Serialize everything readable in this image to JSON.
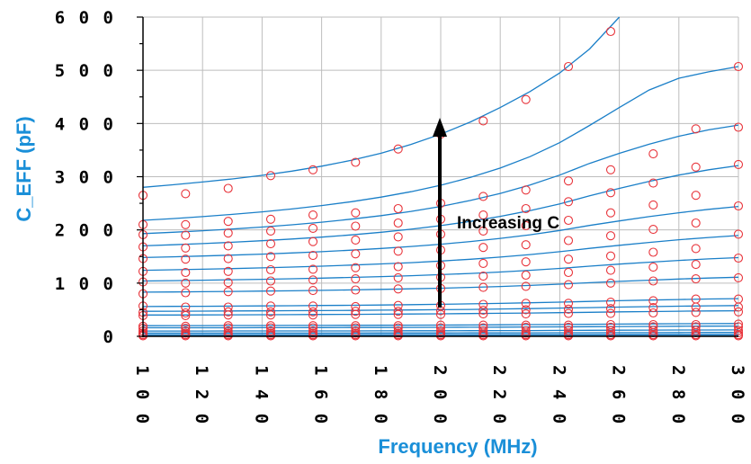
{
  "chart_data": {
    "type": "scatter",
    "xlabel": "Frequency (MHz)",
    "ylabel": "C_EFF (pF)",
    "xlim": [
      100,
      300
    ],
    "ylim": [
      0,
      600
    ],
    "x_ticks": [
      "1 0 0",
      "1 2 0",
      "1 4 0",
      "1 6 0",
      "1 8 0",
      "2 0 0",
      "2 2 0",
      "2 4 0",
      "2 6 0",
      "2 8 0",
      "3 0 0"
    ],
    "y_ticks": [
      "0",
      "1 0 0",
      "2 0 0",
      "3 0 0",
      "4 0 0",
      "5 0 0",
      "6 0 0"
    ],
    "grid": true,
    "annotation": "Increasing C",
    "line_color": "#1a7fc8",
    "marker_color": "#e8333a",
    "label_color": "#1a8fd8",
    "x_markers": [
      100,
      114.3,
      128.6,
      142.9,
      157.1,
      171.4,
      185.7,
      200,
      214.3,
      228.6,
      242.9,
      257.1,
      271.4,
      285.7,
      300
    ],
    "lines_x": [
      100,
      110,
      120,
      130,
      140,
      150,
      160,
      170,
      180,
      190,
      200,
      210,
      220,
      230,
      240,
      250,
      260,
      270,
      280,
      290,
      300
    ],
    "series": [
      {
        "lines_y": [
          280,
          284.8,
          290,
          295.8,
          302.6,
          310.5,
          319.8,
          330.8,
          344.1,
          360.6,
          380,
          403,
          430,
          460,
          495,
          540,
          600,
          null,
          null,
          null,
          null
        ],
        "markers_y": [
          265,
          268,
          278,
          302,
          313,
          327,
          352,
          380,
          405,
          445,
          507,
          573,
          null,
          null,
          null
        ]
      },
      {
        "lines_y": [
          218,
          221.3,
          225,
          229.1,
          233.9,
          239.4,
          245.7,
          253,
          261.6,
          271.8,
          284,
          298.6,
          316.2,
          337.7,
          364,
          396.4,
          430,
          463,
          485,
          497,
          507
        ],
        "markers_y": [
          210,
          210,
          216,
          220,
          228,
          232,
          240,
          250,
          263,
          275,
          292,
          313,
          343,
          390,
          507
        ]
      },
      {
        "lines_y": [
          193,
          195.6,
          198.4,
          201.6,
          205.3,
          209.6,
          214.5,
          220.2,
          226.8,
          234.7,
          244.1,
          255.3,
          268.6,
          284.4,
          303,
          325,
          344,
          361,
          376,
          388,
          397
        ],
        "markers_y": [
          191,
          190,
          194,
          198,
          203,
          207,
          213,
          220,
          228,
          240,
          253,
          270,
          288,
          318,
          393
        ]
      },
      {
        "lines_y": [
          170,
          172,
          174.3,
          176.8,
          179.6,
          182.8,
          186.5,
          190.7,
          195.6,
          201.3,
          208,
          216,
          225.4,
          236.3,
          249,
          264,
          278,
          291,
          303,
          313,
          321
        ],
        "markers_y": [
          168,
          166,
          170,
          174,
          178,
          181,
          187,
          192,
          198,
          208,
          218,
          232,
          247,
          265,
          323
        ]
      },
      {
        "lines_y": [
          148,
          149.4,
          150.9,
          152.6,
          154.5,
          156.7,
          159.1,
          161.9,
          165.1,
          168.8,
          173.1,
          178.1,
          184,
          190.9,
          199,
          208.4,
          216.9,
          224.9,
          232.3,
          238.7,
          244
        ],
        "markers_y": [
          146,
          145,
          146,
          150,
          152,
          155,
          160,
          162,
          167,
          172,
          180,
          189,
          201,
          213,
          245
        ]
      },
      {
        "lines_y": [
          124,
          125,
          126.1,
          127.3,
          128.6,
          130.1,
          131.8,
          133.8,
          136,
          138.5,
          141.5,
          144.9,
          148.9,
          153.6,
          159,
          165.3,
          171.1,
          176.5,
          181.5,
          185.8,
          189.5
        ],
        "markers_y": [
          122,
          120,
          122,
          125,
          126,
          129,
          131,
          133,
          137,
          140,
          145,
          151,
          158,
          165,
          192
        ]
      },
      {
        "lines_y": [
          104,
          104.7,
          105.4,
          106.3,
          107.2,
          108.2,
          109.4,
          110.7,
          112.2,
          113.9,
          115.9,
          118.2,
          120.9,
          124,
          127.6,
          131.8,
          135.7,
          139.3,
          142.6,
          145.5,
          147.9
        ],
        "markers_y": [
          102,
          100,
          101,
          104,
          106,
          108,
          110,
          111,
          113,
          115,
          120,
          124,
          130,
          135,
          147
        ]
      },
      {
        "lines_y": [
          83,
          83.4,
          83.9,
          84.4,
          85,
          85.6,
          86.4,
          87.2,
          88.2,
          89.3,
          90.5,
          92,
          93.7,
          95.7,
          98,
          100.7,
          103.2,
          105.5,
          107.6,
          109.5,
          111
        ],
        "markers_y": [
          80,
          82,
          84,
          85,
          86,
          87,
          89,
          90,
          92,
          94,
          97,
          100,
          104,
          108,
          110
        ]
      },
      {
        "lines_y": [
          56,
          56.2,
          56.5,
          56.8,
          57.1,
          57.5,
          57.9,
          58.3,
          58.9,
          59.5,
          60.2,
          61,
          61.9,
          63,
          64.2,
          65.6,
          66.9,
          68.1,
          69.2,
          70.1,
          70.9
        ],
        "markers_y": [
          57,
          55,
          55,
          57,
          57,
          56,
          58,
          58,
          60,
          62,
          62,
          64,
          67,
          70,
          70
        ]
      },
      {
        "lines_y": [
          47,
          47.2,
          47.4,
          47.6,
          47.8,
          48.1,
          48.4,
          48.7,
          49.1,
          49.5,
          50,
          50.6,
          51.3,
          52.1,
          53,
          54,
          54.9,
          55.8,
          56.6,
          57.3,
          57.8
        ],
        "markers_y": [
          45,
          44,
          46,
          46,
          46,
          47,
          47,
          48,
          49,
          50,
          51,
          52,
          54,
          55,
          55
        ]
      },
      {
        "lines_y": [
          40,
          40.1,
          40.3,
          40.4,
          40.6,
          40.8,
          41,
          41.3,
          41.6,
          41.9,
          42.3,
          42.7,
          43.2,
          43.8,
          44.5,
          45.2,
          45.9,
          46.5,
          47.1,
          47.6,
          48
        ],
        "markers_y": [
          39,
          39,
          40,
          40,
          40,
          41,
          41,
          41,
          42,
          42,
          43,
          43,
          44,
          45,
          46
        ]
      },
      {
        "lines_y": [
          20,
          20.1,
          20.1,
          20.2,
          20.3,
          20.4,
          20.5,
          20.6,
          20.8,
          20.9,
          21.1,
          21.3,
          21.6,
          21.9,
          22.2,
          22.6,
          23,
          23.3,
          23.6,
          23.8,
          24
        ],
        "markers_y": [
          19,
          19,
          20,
          20,
          20,
          20,
          20,
          21,
          21,
          21,
          21,
          22,
          22,
          22,
          23
        ]
      },
      {
        "lines_y": [
          16,
          16,
          16.1,
          16.1,
          16.2,
          16.3,
          16.4,
          16.5,
          16.6,
          16.7,
          16.9,
          17,
          17.2,
          17.5,
          17.8,
          18.1,
          18.4,
          18.6,
          18.9,
          19.1,
          19.2
        ],
        "markers_y": [
          15,
          15,
          16,
          16,
          16,
          16,
          16,
          16,
          16,
          17,
          17,
          17,
          18,
          18,
          18
        ]
      },
      {
        "lines_y": [
          10,
          10,
          10,
          10.1,
          10.1,
          10.1,
          10.2,
          10.2,
          10.3,
          10.4,
          10.5,
          10.6,
          10.8,
          10.9,
          11.1,
          11.3,
          11.5,
          11.6,
          11.8,
          11.9,
          12
        ],
        "markers_y": [
          10,
          10,
          10,
          10,
          10,
          10,
          10,
          10,
          10,
          10,
          11,
          11,
          11,
          11,
          11
        ]
      },
      {
        "lines_y": [
          6,
          6,
          6,
          6,
          6.1,
          6.1,
          6.1,
          6.1,
          6.2,
          6.2,
          6.3,
          6.4,
          6.5,
          6.6,
          6.7,
          6.8,
          6.9,
          7,
          7.1,
          7.2,
          7.2
        ],
        "markers_y": [
          6,
          6,
          6,
          6,
          6,
          6,
          6,
          6,
          6,
          6,
          6,
          7,
          7,
          7,
          7
        ]
      },
      {
        "lines_y": [
          3,
          3,
          3,
          3,
          3,
          3,
          3.1,
          3.1,
          3.1,
          3.1,
          3.2,
          3.2,
          3.2,
          3.3,
          3.3,
          3.4,
          3.5,
          3.5,
          3.5,
          3.6,
          3.6
        ],
        "markers_y": [
          3,
          3,
          3,
          3,
          3,
          3,
          3,
          3,
          3,
          3,
          3,
          3,
          3,
          3,
          3
        ]
      },
      {
        "lines_y": [
          1,
          1,
          1,
          1,
          1,
          1,
          1,
          1,
          1,
          1,
          1.1,
          1.1,
          1.1,
          1.1,
          1.1,
          1.1,
          1.2,
          1.2,
          1.2,
          1.2,
          1.2
        ],
        "markers_y": [
          1,
          1,
          1,
          1,
          1,
          1,
          1,
          1,
          1,
          1,
          1,
          1,
          1,
          1,
          1
        ]
      }
    ]
  }
}
